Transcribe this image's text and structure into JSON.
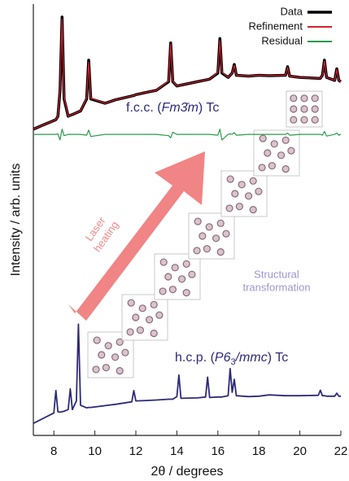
{
  "chart_data": {
    "type": "line",
    "y_label": "Intensity / arb. units",
    "x_label": "2θ / degrees",
    "xlim": [
      7,
      22
    ],
    "xticks": [
      8,
      10,
      12,
      14,
      16,
      18,
      20,
      22
    ],
    "ylim": [
      0,
      100
    ],
    "legend": "top-right",
    "x": [
      7.0,
      7.5,
      8.0,
      8.1,
      8.2,
      8.3,
      8.4,
      8.5,
      8.7,
      8.8,
      8.9,
      9.1,
      9.2,
      9.3,
      9.6,
      9.7,
      9.8,
      10.5,
      11.0,
      11.8,
      11.9,
      12.0,
      12.5,
      13.0,
      13.6,
      13.7,
      13.8,
      14.0,
      14.1,
      14.2,
      15.0,
      15.4,
      15.5,
      15.6,
      16.0,
      16.1,
      16.2,
      16.5,
      16.6,
      16.7,
      16.8,
      16.9,
      17.5,
      18.0,
      18.5,
      19.3,
      19.4,
      19.5,
      20.0,
      20.9,
      21.0,
      21.1,
      21.2,
      21.3,
      21.7,
      21.8,
      21.9,
      22.0
    ],
    "series": [
      {
        "name": "Data",
        "color": "#000000",
        "width": 3.5,
        "values": [
          71,
          72,
          73,
          73.2,
          74,
          80,
          97,
          78,
          74,
          74.2,
          74.4,
          74.8,
          75,
          75.2,
          78,
          87,
          78,
          77,
          77.8,
          78.7,
          78.8,
          79,
          79.5,
          80,
          82,
          91,
          82,
          81,
          81.1,
          81.2,
          82,
          82.4,
          82.5,
          82.6,
          84,
          92,
          84,
          83,
          83.5,
          84,
          86,
          83.5,
          83.3,
          83.5,
          83.4,
          83.5,
          85.5,
          83.3,
          83,
          82.8,
          82.8,
          83.5,
          87,
          83,
          82.3,
          85,
          82.3,
          82
        ]
      },
      {
        "name": "Refinement",
        "color": "#d62030",
        "width": 1.2,
        "values": [
          71,
          72,
          73,
          73.2,
          74,
          80.5,
          96.5,
          78.5,
          74,
          74.2,
          74.4,
          74.8,
          75,
          75.2,
          78.2,
          86.5,
          78.2,
          77,
          77.8,
          78.7,
          78.8,
          79,
          79.5,
          80,
          82.2,
          90.8,
          82.2,
          81,
          81.1,
          81.2,
          82,
          82.4,
          82.5,
          82.6,
          84.2,
          91.5,
          84.3,
          83,
          83.5,
          84,
          85.8,
          83.5,
          83.3,
          83.5,
          83.4,
          83.5,
          85.3,
          83.3,
          83,
          82.8,
          82.8,
          83.5,
          86.8,
          83,
          82.3,
          84.8,
          82.3,
          82
        ]
      },
      {
        "name": "Residual",
        "color": "#2a9a4a",
        "width": 1.2,
        "values": [
          69.8,
          69.8,
          69.8,
          69.8,
          69.9,
          68.5,
          71,
          69.5,
          69.8,
          69.8,
          69.8,
          69.8,
          69.8,
          69.8,
          69.6,
          70.8,
          69.3,
          69.8,
          69.8,
          69.8,
          69.8,
          69.8,
          69.8,
          69.8,
          69.5,
          69,
          70.3,
          69.8,
          69.8,
          69.8,
          69.8,
          69.8,
          69.8,
          69.8,
          69.6,
          71,
          68.5,
          69.8,
          69.9,
          69.8,
          70.2,
          69.6,
          69.8,
          69.8,
          69.8,
          69.8,
          70.1,
          69.6,
          69.8,
          69.8,
          69.8,
          69.6,
          70.5,
          69.4,
          69.8,
          70.1,
          69.6,
          69.8
        ]
      },
      {
        "color": "#2e2a7a",
        "width": 1.8,
        "values": [
          2.8,
          4,
          5.2,
          10.4,
          5.5,
          5.4,
          5.5,
          5.6,
          6,
          10.8,
          6,
          8,
          25.8,
          7,
          6.4,
          6.5,
          6.5,
          6.9,
          7.2,
          7.8,
          10.4,
          8,
          8.1,
          8.2,
          8.4,
          8.4,
          8.4,
          9,
          14,
          8.6,
          8.7,
          8.9,
          13.5,
          8.8,
          8.9,
          8.9,
          8.9,
          9.2,
          15.5,
          10,
          13,
          9.2,
          9,
          9.1,
          9.4,
          9.2,
          9.2,
          9.2,
          9.2,
          9.3,
          10.5,
          9.2,
          9.2,
          9.1,
          9.1,
          9.8,
          9.1,
          9.1
        ]
      }
    ],
    "annotations": [
      {
        "parts": [
          "f.c.c. (",
          "Fm3̄m",
          ") Tc"
        ],
        "styles": [
          "normal",
          "italic",
          "normal"
        ],
        "color": "#2e2a7a"
      },
      {
        "parts": [
          "h.c.p. (",
          "P6",
          "3",
          "/mmc",
          ") Tc"
        ],
        "styles": [
          "normal",
          "italic",
          "sub",
          "italic",
          "normal"
        ],
        "color": "#2e2a7a"
      },
      {
        "lines": [
          "Laser",
          "heating"
        ],
        "color": "#f08a8a"
      },
      {
        "lines": [
          "Structural",
          "transformation"
        ],
        "color": "#9a96d2"
      }
    ]
  }
}
